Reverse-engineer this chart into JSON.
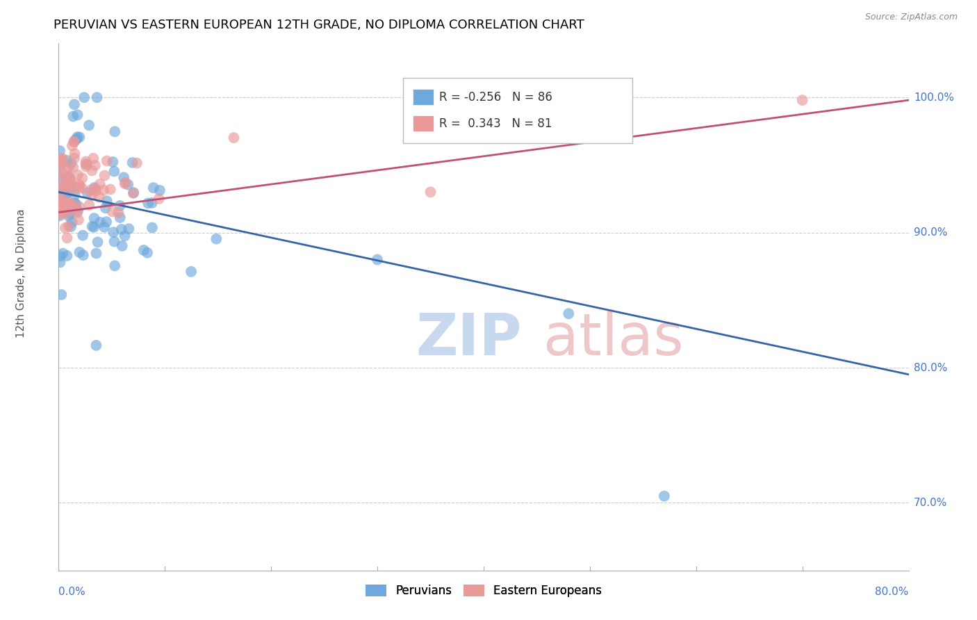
{
  "title": "PERUVIAN VS EASTERN EUROPEAN 12TH GRADE, NO DIPLOMA CORRELATION CHART",
  "source": "Source: ZipAtlas.com",
  "ylabel": "12th Grade, No Diploma",
  "peruvian_color": "#6fa8dc",
  "eastern_color": "#ea9999",
  "peruvian_line_color": "#3465a4",
  "eastern_line_color": "#c0507a",
  "peruvian_R": -0.256,
  "peruvian_N": 86,
  "eastern_R": 0.343,
  "eastern_N": 81,
  "xlim": [
    0.0,
    80.0
  ],
  "ylim": [
    65.0,
    104.0
  ],
  "y_ticks": [
    70.0,
    80.0,
    90.0,
    100.0
  ],
  "watermark_zip_color": "#c8d8ee",
  "watermark_atlas_color": "#eec8c8",
  "peruvian_line_x0": 0.0,
  "peruvian_line_y0": 93.0,
  "peruvian_line_x1": 80.0,
  "peruvian_line_y1": 79.5,
  "eastern_line_x0": 0.0,
  "eastern_line_y0": 91.5,
  "eastern_line_x1": 80.0,
  "eastern_line_y1": 99.8
}
